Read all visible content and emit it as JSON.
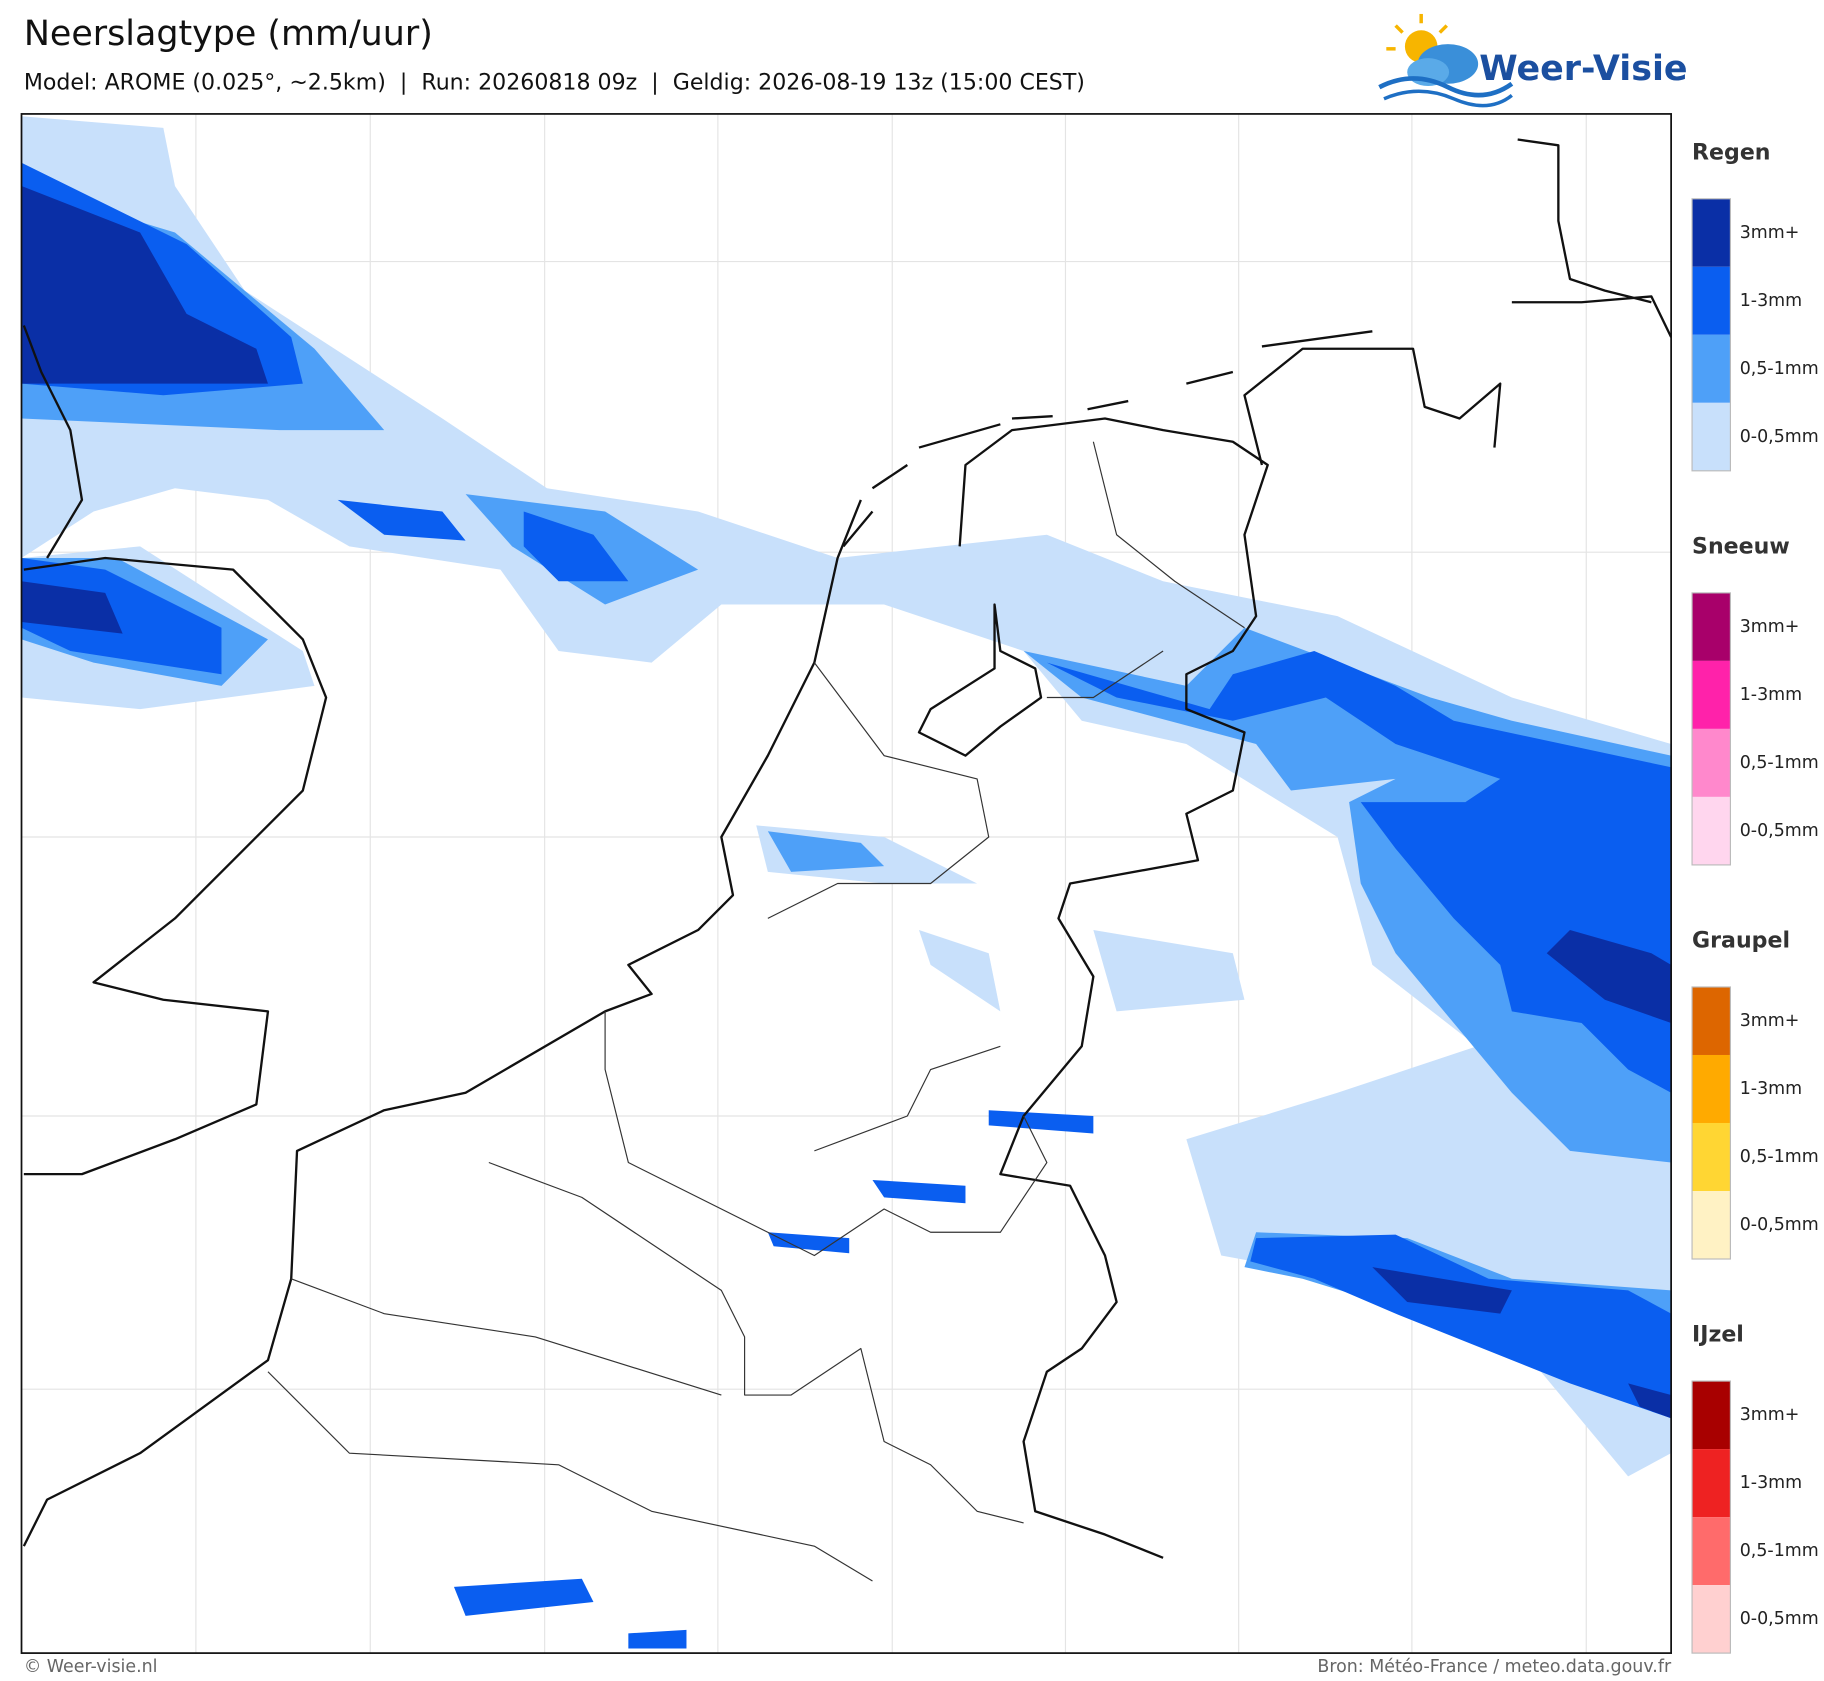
{
  "header": {
    "title": "Neerslagtype (mm/uur)",
    "subtitle": "Model: AROME (0.025°, ~2.5km)  |  Run: 20260818 09z  |  Geldig: 2026-08-19 13z (15:00 CEST)"
  },
  "logo": {
    "text": "Weer-Visie"
  },
  "legend": [
    {
      "title": "Regen",
      "items": [
        {
          "label": "3mm+",
          "color": "#0a2fa6"
        },
        {
          "label": "1-3mm",
          "color": "#0a5ef0"
        },
        {
          "label": "0,5-1mm",
          "color": "#4ea0f8"
        },
        {
          "label": "0-0,5mm",
          "color": "#c8e0fb"
        }
      ]
    },
    {
      "title": "Sneeuw",
      "items": [
        {
          "label": "3mm+",
          "color": "#a8006a"
        },
        {
          "label": "1-3mm",
          "color": "#ff22aa"
        },
        {
          "label": "0,5-1mm",
          "color": "#ff88cc"
        },
        {
          "label": "0-0,5mm",
          "color": "#ffd6ee"
        }
      ]
    },
    {
      "title": "Graupel",
      "items": [
        {
          "label": "3mm+",
          "color": "#dd6600"
        },
        {
          "label": "1-3mm",
          "color": "#ffaa00"
        },
        {
          "label": "0,5-1mm",
          "color": "#ffd633"
        },
        {
          "label": "0-0,5mm",
          "color": "#fff2c4"
        }
      ]
    },
    {
      "title": "IJzel",
      "items": [
        {
          "label": "3mm+",
          "color": "#a80000"
        },
        {
          "label": "1-3mm",
          "color": "#ee2222"
        },
        {
          "label": "0,5-1mm",
          "color": "#ff6b6b"
        },
        {
          "label": "0-0,5mm",
          "color": "#ffd0d0"
        }
      ]
    }
  ],
  "footer": {
    "left": "© Weer-visie.nl",
    "right": "Bron: Météo-France / meteo.data.gouv.fr"
  }
}
